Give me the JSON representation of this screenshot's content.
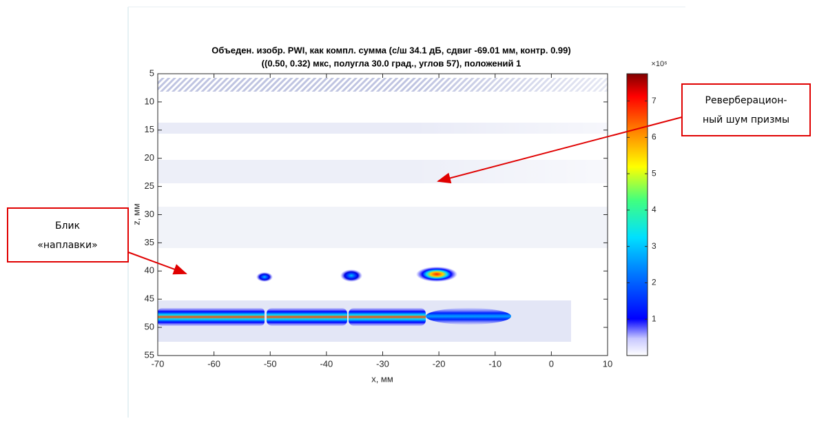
{
  "chart_data": {
    "type": "image",
    "title": [
      "Объеден. изобр. PWI, как компл. сумма (с/ш 34.1 дБ, сдвиг -69.01 мм, контр. 0.99)",
      "((0.50, 0.32) мкс, полугла 30.0 град., углов 57), положений 1"
    ],
    "xlabel": "x, мм",
    "ylabel": "z, мм",
    "xlim": [
      -70,
      10
    ],
    "ylim": [
      5,
      55
    ],
    "y_reversed": true,
    "xticks": [
      -70,
      -60,
      -50,
      -40,
      -30,
      -20,
      -10,
      0,
      10
    ],
    "yticks": [
      5,
      10,
      15,
      20,
      25,
      30,
      35,
      40,
      45,
      50,
      55
    ],
    "colorbar": {
      "clim": [
        0,
        7.75
      ],
      "ticks": [
        1,
        2,
        3,
        4,
        5,
        6,
        7
      ],
      "multiplier": "×10⁶"
    }
  },
  "annotations": [
    {
      "lines": [
        "Реверберацион-",
        "ный шум призмы"
      ]
    },
    {
      "lines": [
        "Блик",
        "«наплавки»"
      ]
    }
  ]
}
